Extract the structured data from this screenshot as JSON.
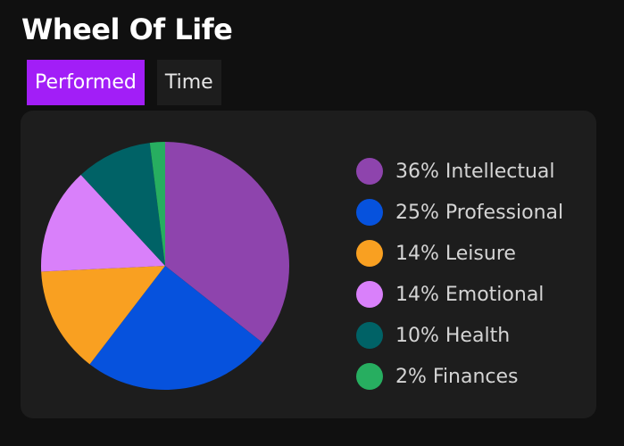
{
  "header": {
    "title": "Wheel Of Life"
  },
  "tabs": [
    {
      "label": "Performed",
      "active": true
    },
    {
      "label": "Time",
      "active": false
    }
  ],
  "colors": {
    "accent": "#a21ef7",
    "background": "#101010",
    "card": "#1d1d1d"
  },
  "chart_data": {
    "type": "pie",
    "title": "",
    "slices": [
      {
        "label": "36% Intellectual",
        "name": "Intellectual",
        "value": 36,
        "color": "#8e44ad"
      },
      {
        "label": "25% Professional",
        "name": "Professional",
        "value": 25,
        "color": "#0652dd"
      },
      {
        "label": "14% Leisure",
        "name": "Leisure",
        "value": 14,
        "color": "#f9a021"
      },
      {
        "label": "14% Emotional",
        "name": "Emotional",
        "value": 14,
        "color": "#d980fa"
      },
      {
        "label": "10% Health",
        "name": "Health",
        "value": 10,
        "color": "#006266"
      },
      {
        "label": "2% Finances",
        "name": "Finances",
        "value": 2,
        "color": "#27ae60"
      }
    ],
    "legend_position": "right"
  }
}
